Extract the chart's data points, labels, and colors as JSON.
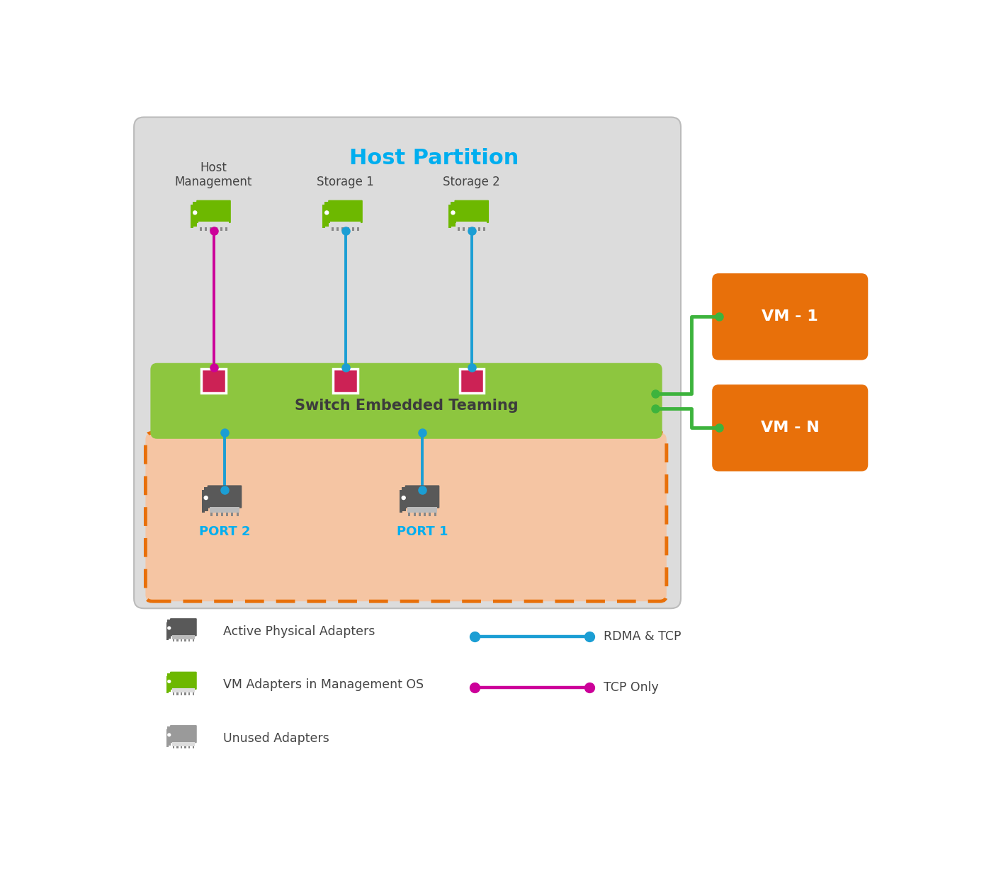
{
  "title": "Host Partition",
  "title_color": "#00AEEF",
  "host_partition_bg": "#DCDCDC",
  "port_section_bg": "#F5C5A3",
  "port_border_color": "#E8700A",
  "switch_bar_color": "#8DC63F",
  "switch_text": "Switch Embedded Teaming",
  "switch_text_color": "#3C3C3C",
  "red_square_color": "#CC2255",
  "vm_box_color": "#E8700A",
  "vm1_text": "VM - 1",
  "vmn_text": "VM - N",
  "green_line_color": "#3DB33D",
  "blue_line_color": "#1B9ED4",
  "pink_line_color": "#CC0099",
  "port2_label": "PORT 2",
  "port1_label": "PORT 1",
  "port_label_color": "#00AEEF",
  "host_mgmt_label": "Host\nManagement",
  "storage1_label": "Storage 1",
  "storage2_label": "Storage 2",
  "label_color": "#444444",
  "legend_active_label": "Active Physical Adapters",
  "legend_vm_label": "VM Adapters in Management OS",
  "legend_unused_label": "Unused Adapters",
  "legend_rdma_label": "RDMA & TCP",
  "legend_tcp_label": "TCP Only",
  "green_adapter_color": "#6DB800",
  "dark_adapter_color": "#595959",
  "light_adapter_color": "#9A9A9A"
}
